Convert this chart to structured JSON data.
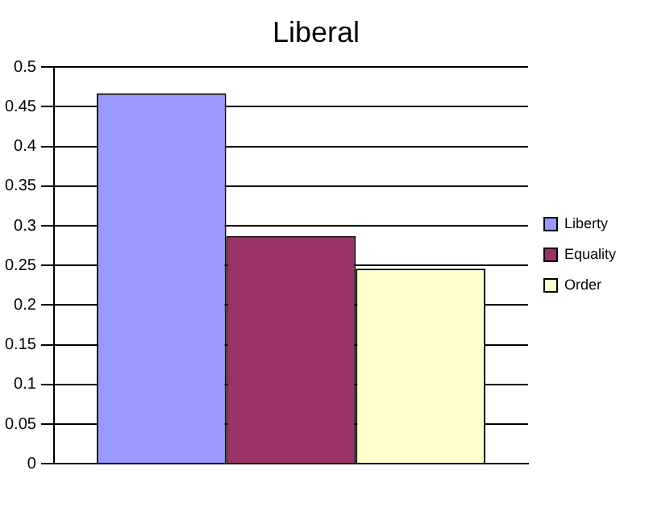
{
  "chart_data": {
    "type": "bar",
    "title": "Liberal",
    "categories": [
      null
    ],
    "series": [
      {
        "name": "Liberty",
        "color": "#9999ff",
        "values": [
          0.467
        ]
      },
      {
        "name": "Equality",
        "color": "#993366",
        "values": [
          0.287
        ]
      },
      {
        "name": "Order",
        "color": "#ffffcc",
        "values": [
          0.246
        ]
      }
    ],
    "ylim": [
      0,
      0.5
    ],
    "yticks": [
      0,
      0.05,
      0.1,
      0.15,
      0.2,
      0.25,
      0.3,
      0.35,
      0.4,
      0.45,
      0.5
    ],
    "grid": "y",
    "legend": "right"
  }
}
